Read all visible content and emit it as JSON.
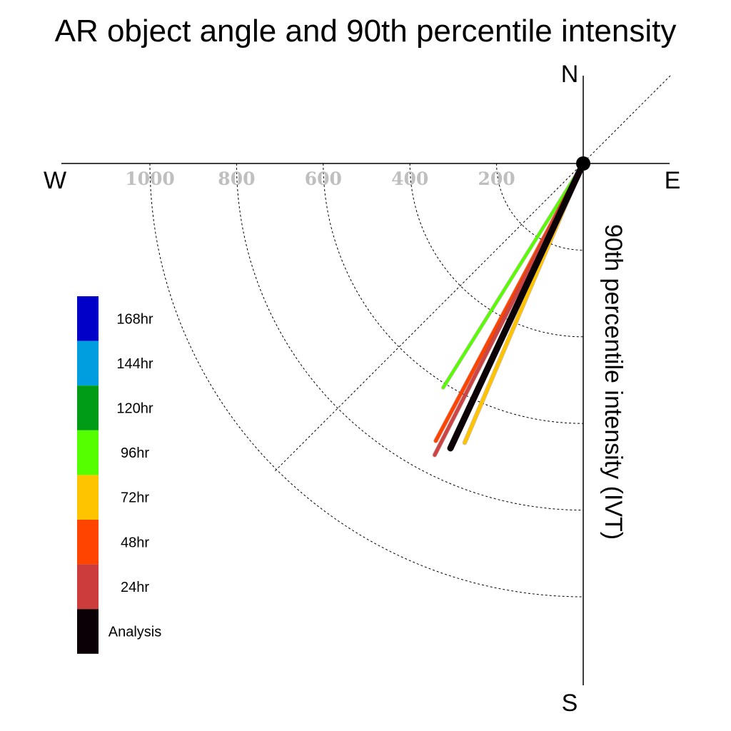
{
  "chart_data": {
    "type": "polar-line",
    "title": "AR object angle and 90th percentile intensity",
    "radial_label": "90th percentile intensity (IVT)",
    "compass": {
      "north": "N",
      "south": "S",
      "east": "E",
      "west": "W"
    },
    "radial_ticks": [
      200,
      400,
      600,
      800,
      1000
    ],
    "radial_tick_labels": [
      "200",
      "400",
      "600",
      "800",
      "1000"
    ],
    "radial_max": 1200,
    "angle_convention": "degrees clockwise from north",
    "grid": true,
    "legend_position": "left",
    "series": [
      {
        "name": "96hr",
        "color": "#55ff00",
        "angle": 212,
        "intensity": 610
      },
      {
        "name": "72hr",
        "color": "#ffc400",
        "angle": 203,
        "intensity": 700
      },
      {
        "name": "48hr",
        "color": "#ff4400",
        "angle": 208,
        "intensity": 725
      },
      {
        "name": "24hr",
        "color": "#cc4444",
        "angle": 207,
        "intensity": 755
      },
      {
        "name": "Analysis",
        "color": "#0a0006",
        "angle": 205,
        "intensity": 725
      }
    ],
    "legend": [
      {
        "label": "168hr",
        "color": "#0000c8"
      },
      {
        "label": "144hr",
        "color": "#009ede"
      },
      {
        "label": "120hr",
        "color": "#009c16"
      },
      {
        "label": "96hr",
        "color": "#55ff00"
      },
      {
        "label": "72hr",
        "color": "#ffc400"
      },
      {
        "label": "48hr",
        "color": "#ff4400"
      },
      {
        "label": "24hr",
        "color": "#cc3c3c"
      },
      {
        "label": "Analysis",
        "color": "#0a0006"
      }
    ]
  }
}
